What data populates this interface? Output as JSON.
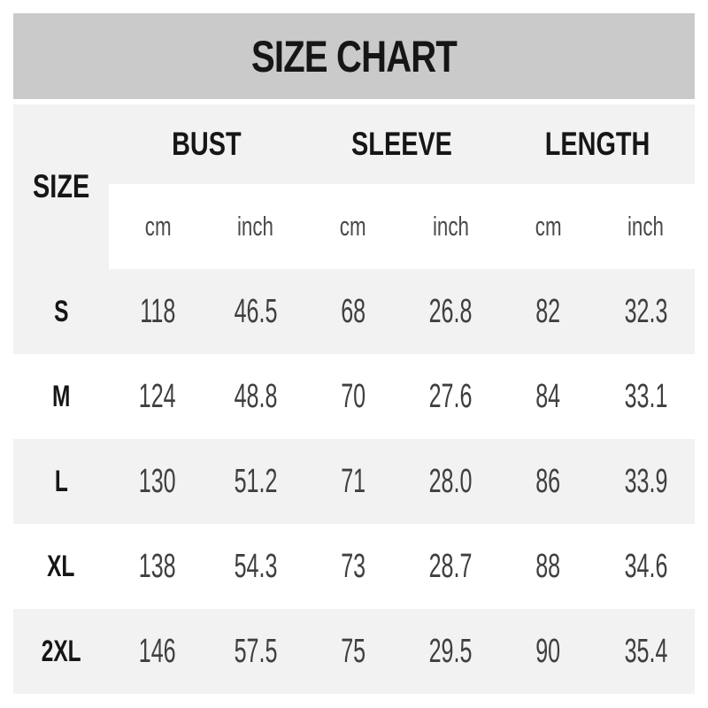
{
  "title": "SIZE CHART",
  "colors": {
    "title_bar_bg": "#cacaca",
    "stripe_bg": "#f2f2f2",
    "page_bg": "#ffffff",
    "heading_text": "#161616",
    "value_text": "#3f3f3f",
    "unit_text": "#4a4a4a"
  },
  "table": {
    "size_header": "SIZE",
    "groups": [
      {
        "label": "BUST"
      },
      {
        "label": "SLEEVE"
      },
      {
        "label": "LENGTH"
      }
    ],
    "units": [
      "cm",
      "inch",
      "cm",
      "inch",
      "cm",
      "inch"
    ],
    "rows": [
      {
        "size": "S",
        "values": [
          "118",
          "46.5",
          "68",
          "26.8",
          "82",
          "32.3"
        ]
      },
      {
        "size": "M",
        "values": [
          "124",
          "48.8",
          "70",
          "27.6",
          "84",
          "33.1"
        ]
      },
      {
        "size": "L",
        "values": [
          "130",
          "51.2",
          "71",
          "28.0",
          "86",
          "33.9"
        ]
      },
      {
        "size": "XL",
        "values": [
          "138",
          "54.3",
          "73",
          "28.7",
          "88",
          "34.6"
        ]
      },
      {
        "size": "2XL",
        "values": [
          "146",
          "57.5",
          "75",
          "29.5",
          "90",
          "35.4"
        ]
      }
    ]
  },
  "chart_data": {
    "type": "table",
    "title": "SIZE CHART",
    "column_groups": [
      "BUST",
      "SLEEVE",
      "LENGTH"
    ],
    "columns": [
      "SIZE",
      "BUST (cm)",
      "BUST (inch)",
      "SLEEVE (cm)",
      "SLEEVE (inch)",
      "LENGTH (cm)",
      "LENGTH (inch)"
    ],
    "rows": [
      [
        "S",
        118,
        46.5,
        68,
        26.8,
        82,
        32.3
      ],
      [
        "M",
        124,
        48.8,
        70,
        27.6,
        84,
        33.1
      ],
      [
        "L",
        130,
        51.2,
        71,
        28.0,
        86,
        33.9
      ],
      [
        "XL",
        138,
        54.3,
        73,
        28.7,
        88,
        34.6
      ],
      [
        "2XL",
        146,
        57.5,
        75,
        29.5,
        90,
        35.4
      ]
    ]
  }
}
